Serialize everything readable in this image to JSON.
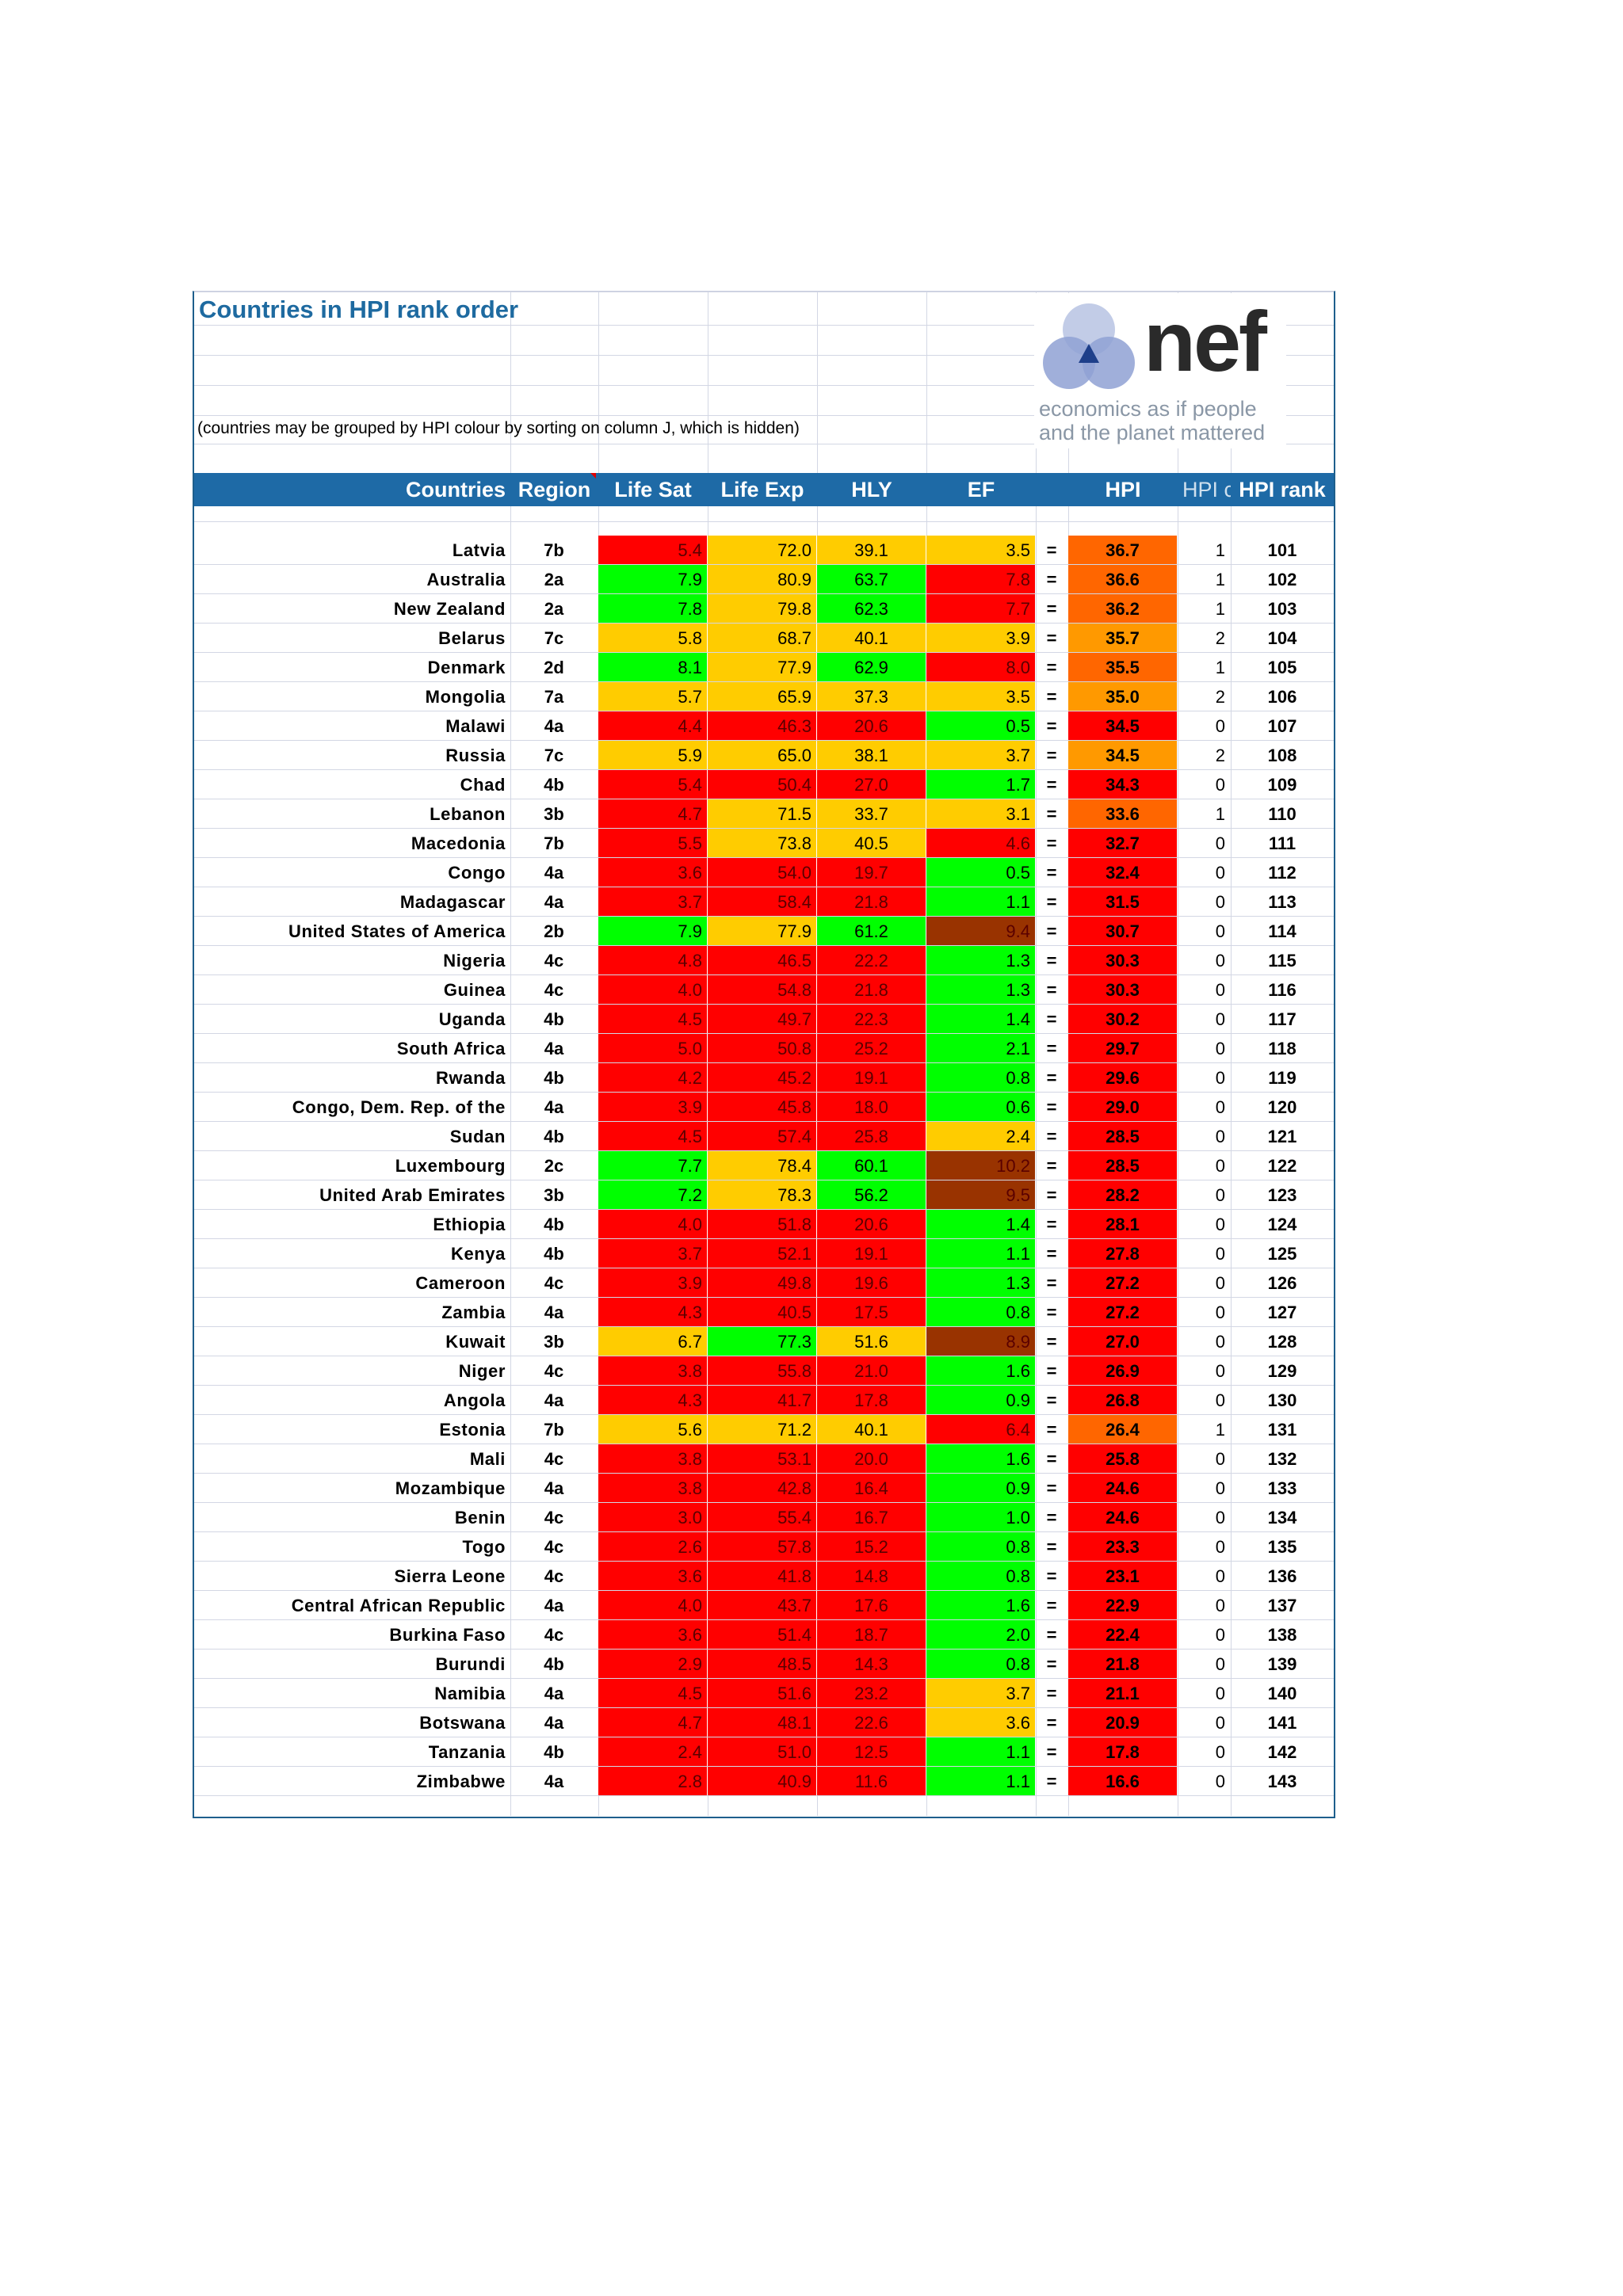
{
  "title": "Countries in HPI rank order",
  "note": "(countries may be grouped by HPI colour by sorting on column J, which is hidden)",
  "logo": {
    "word": "nef",
    "tagline_1": "economics as if people",
    "tagline_2": "and the planet mattered"
  },
  "columns": {
    "countries": "Countries",
    "region": "Region",
    "life_sat": "Life Sat",
    "life_exp": "Life Exp",
    "hly": "HLY",
    "ef": "EF",
    "hpi": "HPI",
    "hpi_colour": "HPI c",
    "hpi_rank": "HPI rank"
  },
  "colors": {
    "red": "#ff0000",
    "orange": "#ff6600",
    "amber": "#ff9900",
    "yellow": "#ffcc00",
    "green": "#00ff00",
    "brown": "#993300",
    "header": "#1e6aa6",
    "title": "#1e6aa0"
  },
  "rows": [
    {
      "country": "Latvia",
      "region": "7b",
      "ls": "5.4",
      "ls_c": "red",
      "le": "72.0",
      "le_c": "yellow",
      "hly": "39.1",
      "hly_c": "yellow",
      "ef": "3.5",
      "ef_c": "yellow",
      "hpi": "36.7",
      "hpi_c": "orange",
      "hc": "1",
      "rank": "101"
    },
    {
      "country": "Australia",
      "region": "2a",
      "ls": "7.9",
      "ls_c": "green",
      "le": "80.9",
      "le_c": "yellow",
      "hly": "63.7",
      "hly_c": "green",
      "ef": "7.8",
      "ef_c": "red",
      "hpi": "36.6",
      "hpi_c": "orange",
      "hc": "1",
      "rank": "102"
    },
    {
      "country": "New Zealand",
      "region": "2a",
      "ls": "7.8",
      "ls_c": "green",
      "le": "79.8",
      "le_c": "yellow",
      "hly": "62.3",
      "hly_c": "green",
      "ef": "7.7",
      "ef_c": "red",
      "hpi": "36.2",
      "hpi_c": "orange",
      "hc": "1",
      "rank": "103"
    },
    {
      "country": "Belarus",
      "region": "7c",
      "ls": "5.8",
      "ls_c": "yellow",
      "le": "68.7",
      "le_c": "yellow",
      "hly": "40.1",
      "hly_c": "yellow",
      "ef": "3.9",
      "ef_c": "yellow",
      "hpi": "35.7",
      "hpi_c": "amber",
      "hc": "2",
      "rank": "104"
    },
    {
      "country": "Denmark",
      "region": "2d",
      "ls": "8.1",
      "ls_c": "green",
      "le": "77.9",
      "le_c": "yellow",
      "hly": "62.9",
      "hly_c": "green",
      "ef": "8.0",
      "ef_c": "red",
      "hpi": "35.5",
      "hpi_c": "orange",
      "hc": "1",
      "rank": "105"
    },
    {
      "country": "Mongolia",
      "region": "7a",
      "ls": "5.7",
      "ls_c": "yellow",
      "le": "65.9",
      "le_c": "yellow",
      "hly": "37.3",
      "hly_c": "yellow",
      "ef": "3.5",
      "ef_c": "yellow",
      "hpi": "35.0",
      "hpi_c": "amber",
      "hc": "2",
      "rank": "106"
    },
    {
      "country": "Malawi",
      "region": "4a",
      "ls": "4.4",
      "ls_c": "red",
      "le": "46.3",
      "le_c": "red",
      "hly": "20.6",
      "hly_c": "red",
      "ef": "0.5",
      "ef_c": "green",
      "hpi": "34.5",
      "hpi_c": "red",
      "hc": "0",
      "rank": "107"
    },
    {
      "country": "Russia",
      "region": "7c",
      "ls": "5.9",
      "ls_c": "yellow",
      "le": "65.0",
      "le_c": "yellow",
      "hly": "38.1",
      "hly_c": "yellow",
      "ef": "3.7",
      "ef_c": "yellow",
      "hpi": "34.5",
      "hpi_c": "amber",
      "hc": "2",
      "rank": "108"
    },
    {
      "country": "Chad",
      "region": "4b",
      "ls": "5.4",
      "ls_c": "red",
      "le": "50.4",
      "le_c": "red",
      "hly": "27.0",
      "hly_c": "red",
      "ef": "1.7",
      "ef_c": "green",
      "hpi": "34.3",
      "hpi_c": "red",
      "hc": "0",
      "rank": "109"
    },
    {
      "country": "Lebanon",
      "region": "3b",
      "ls": "4.7",
      "ls_c": "red",
      "le": "71.5",
      "le_c": "yellow",
      "hly": "33.7",
      "hly_c": "yellow",
      "ef": "3.1",
      "ef_c": "yellow",
      "hpi": "33.6",
      "hpi_c": "orange",
      "hc": "1",
      "rank": "110"
    },
    {
      "country": "Macedonia",
      "region": "7b",
      "ls": "5.5",
      "ls_c": "red",
      "le": "73.8",
      "le_c": "yellow",
      "hly": "40.5",
      "hly_c": "yellow",
      "ef": "4.6",
      "ef_c": "red",
      "hpi": "32.7",
      "hpi_c": "red",
      "hc": "0",
      "rank": "111"
    },
    {
      "country": "Congo",
      "region": "4a",
      "ls": "3.6",
      "ls_c": "red",
      "le": "54.0",
      "le_c": "red",
      "hly": "19.7",
      "hly_c": "red",
      "ef": "0.5",
      "ef_c": "green",
      "hpi": "32.4",
      "hpi_c": "red",
      "hc": "0",
      "rank": "112"
    },
    {
      "country": "Madagascar",
      "region": "4a",
      "ls": "3.7",
      "ls_c": "red",
      "le": "58.4",
      "le_c": "red",
      "hly": "21.8",
      "hly_c": "red",
      "ef": "1.1",
      "ef_c": "green",
      "hpi": "31.5",
      "hpi_c": "red",
      "hc": "0",
      "rank": "113"
    },
    {
      "country": "United States of America",
      "region": "2b",
      "ls": "7.9",
      "ls_c": "green",
      "le": "77.9",
      "le_c": "yellow",
      "hly": "61.2",
      "hly_c": "green",
      "ef": "9.4",
      "ef_c": "brown",
      "hpi": "30.7",
      "hpi_c": "red",
      "hc": "0",
      "rank": "114"
    },
    {
      "country": "Nigeria",
      "region": "4c",
      "ls": "4.8",
      "ls_c": "red",
      "le": "46.5",
      "le_c": "red",
      "hly": "22.2",
      "hly_c": "red",
      "ef": "1.3",
      "ef_c": "green",
      "hpi": "30.3",
      "hpi_c": "red",
      "hc": "0",
      "rank": "115"
    },
    {
      "country": "Guinea",
      "region": "4c",
      "ls": "4.0",
      "ls_c": "red",
      "le": "54.8",
      "le_c": "red",
      "hly": "21.8",
      "hly_c": "red",
      "ef": "1.3",
      "ef_c": "green",
      "hpi": "30.3",
      "hpi_c": "red",
      "hc": "0",
      "rank": "116"
    },
    {
      "country": "Uganda",
      "region": "4b",
      "ls": "4.5",
      "ls_c": "red",
      "le": "49.7",
      "le_c": "red",
      "hly": "22.3",
      "hly_c": "red",
      "ef": "1.4",
      "ef_c": "green",
      "hpi": "30.2",
      "hpi_c": "red",
      "hc": "0",
      "rank": "117"
    },
    {
      "country": "South Africa",
      "region": "4a",
      "ls": "5.0",
      "ls_c": "red",
      "le": "50.8",
      "le_c": "red",
      "hly": "25.2",
      "hly_c": "red",
      "ef": "2.1",
      "ef_c": "green",
      "hpi": "29.7",
      "hpi_c": "red",
      "hc": "0",
      "rank": "118"
    },
    {
      "country": "Rwanda",
      "region": "4b",
      "ls": "4.2",
      "ls_c": "red",
      "le": "45.2",
      "le_c": "red",
      "hly": "19.1",
      "hly_c": "red",
      "ef": "0.8",
      "ef_c": "green",
      "hpi": "29.6",
      "hpi_c": "red",
      "hc": "0",
      "rank": "119"
    },
    {
      "country": "Congo, Dem. Rep. of the",
      "region": "4a",
      "ls": "3.9",
      "ls_c": "red",
      "le": "45.8",
      "le_c": "red",
      "hly": "18.0",
      "hly_c": "red",
      "ef": "0.6",
      "ef_c": "green",
      "hpi": "29.0",
      "hpi_c": "red",
      "hc": "0",
      "rank": "120"
    },
    {
      "country": "Sudan",
      "region": "4b",
      "ls": "4.5",
      "ls_c": "red",
      "le": "57.4",
      "le_c": "red",
      "hly": "25.8",
      "hly_c": "red",
      "ef": "2.4",
      "ef_c": "yellow",
      "hpi": "28.5",
      "hpi_c": "red",
      "hc": "0",
      "rank": "121"
    },
    {
      "country": "Luxembourg",
      "region": "2c",
      "ls": "7.7",
      "ls_c": "green",
      "le": "78.4",
      "le_c": "yellow",
      "hly": "60.1",
      "hly_c": "green",
      "ef": "10.2",
      "ef_c": "brown",
      "hpi": "28.5",
      "hpi_c": "red",
      "hc": "0",
      "rank": "122"
    },
    {
      "country": "United Arab Emirates",
      "region": "3b",
      "ls": "7.2",
      "ls_c": "green",
      "le": "78.3",
      "le_c": "yellow",
      "hly": "56.2",
      "hly_c": "green",
      "ef": "9.5",
      "ef_c": "brown",
      "hpi": "28.2",
      "hpi_c": "red",
      "hc": "0",
      "rank": "123"
    },
    {
      "country": "Ethiopia",
      "region": "4b",
      "ls": "4.0",
      "ls_c": "red",
      "le": "51.8",
      "le_c": "red",
      "hly": "20.6",
      "hly_c": "red",
      "ef": "1.4",
      "ef_c": "green",
      "hpi": "28.1",
      "hpi_c": "red",
      "hc": "0",
      "rank": "124"
    },
    {
      "country": "Kenya",
      "region": "4b",
      "ls": "3.7",
      "ls_c": "red",
      "le": "52.1",
      "le_c": "red",
      "hly": "19.1",
      "hly_c": "red",
      "ef": "1.1",
      "ef_c": "green",
      "hpi": "27.8",
      "hpi_c": "red",
      "hc": "0",
      "rank": "125"
    },
    {
      "country": "Cameroon",
      "region": "4c",
      "ls": "3.9",
      "ls_c": "red",
      "le": "49.8",
      "le_c": "red",
      "hly": "19.6",
      "hly_c": "red",
      "ef": "1.3",
      "ef_c": "green",
      "hpi": "27.2",
      "hpi_c": "red",
      "hc": "0",
      "rank": "126"
    },
    {
      "country": "Zambia",
      "region": "4a",
      "ls": "4.3",
      "ls_c": "red",
      "le": "40.5",
      "le_c": "red",
      "hly": "17.5",
      "hly_c": "red",
      "ef": "0.8",
      "ef_c": "green",
      "hpi": "27.2",
      "hpi_c": "red",
      "hc": "0",
      "rank": "127"
    },
    {
      "country": "Kuwait",
      "region": "3b",
      "ls": "6.7",
      "ls_c": "yellow",
      "le": "77.3",
      "le_c": "green",
      "hly": "51.6",
      "hly_c": "yellow",
      "ef": "8.9",
      "ef_c": "brown",
      "hpi": "27.0",
      "hpi_c": "red",
      "hc": "0",
      "rank": "128"
    },
    {
      "country": "Niger",
      "region": "4c",
      "ls": "3.8",
      "ls_c": "red",
      "le": "55.8",
      "le_c": "red",
      "hly": "21.0",
      "hly_c": "red",
      "ef": "1.6",
      "ef_c": "green",
      "hpi": "26.9",
      "hpi_c": "red",
      "hc": "0",
      "rank": "129"
    },
    {
      "country": "Angola",
      "region": "4a",
      "ls": "4.3",
      "ls_c": "red",
      "le": "41.7",
      "le_c": "red",
      "hly": "17.8",
      "hly_c": "red",
      "ef": "0.9",
      "ef_c": "green",
      "hpi": "26.8",
      "hpi_c": "red",
      "hc": "0",
      "rank": "130"
    },
    {
      "country": "Estonia",
      "region": "7b",
      "ls": "5.6",
      "ls_c": "yellow",
      "le": "71.2",
      "le_c": "yellow",
      "hly": "40.1",
      "hly_c": "yellow",
      "ef": "6.4",
      "ef_c": "red",
      "hpi": "26.4",
      "hpi_c": "orange",
      "hc": "1",
      "rank": "131"
    },
    {
      "country": "Mali",
      "region": "4c",
      "ls": "3.8",
      "ls_c": "red",
      "le": "53.1",
      "le_c": "red",
      "hly": "20.0",
      "hly_c": "red",
      "ef": "1.6",
      "ef_c": "green",
      "hpi": "25.8",
      "hpi_c": "red",
      "hc": "0",
      "rank": "132"
    },
    {
      "country": "Mozambique",
      "region": "4a",
      "ls": "3.8",
      "ls_c": "red",
      "le": "42.8",
      "le_c": "red",
      "hly": "16.4",
      "hly_c": "red",
      "ef": "0.9",
      "ef_c": "green",
      "hpi": "24.6",
      "hpi_c": "red",
      "hc": "0",
      "rank": "133"
    },
    {
      "country": "Benin",
      "region": "4c",
      "ls": "3.0",
      "ls_c": "red",
      "le": "55.4",
      "le_c": "red",
      "hly": "16.7",
      "hly_c": "red",
      "ef": "1.0",
      "ef_c": "green",
      "hpi": "24.6",
      "hpi_c": "red",
      "hc": "0",
      "rank": "134"
    },
    {
      "country": "Togo",
      "region": "4c",
      "ls": "2.6",
      "ls_c": "red",
      "le": "57.8",
      "le_c": "red",
      "hly": "15.2",
      "hly_c": "red",
      "ef": "0.8",
      "ef_c": "green",
      "hpi": "23.3",
      "hpi_c": "red",
      "hc": "0",
      "rank": "135"
    },
    {
      "country": "Sierra Leone",
      "region": "4c",
      "ls": "3.6",
      "ls_c": "red",
      "le": "41.8",
      "le_c": "red",
      "hly": "14.8",
      "hly_c": "red",
      "ef": "0.8",
      "ef_c": "green",
      "hpi": "23.1",
      "hpi_c": "red",
      "hc": "0",
      "rank": "136"
    },
    {
      "country": "Central African Republic",
      "region": "4a",
      "ls": "4.0",
      "ls_c": "red",
      "le": "43.7",
      "le_c": "red",
      "hly": "17.6",
      "hly_c": "red",
      "ef": "1.6",
      "ef_c": "green",
      "hpi": "22.9",
      "hpi_c": "red",
      "hc": "0",
      "rank": "137"
    },
    {
      "country": "Burkina Faso",
      "region": "4c",
      "ls": "3.6",
      "ls_c": "red",
      "le": "51.4",
      "le_c": "red",
      "hly": "18.7",
      "hly_c": "red",
      "ef": "2.0",
      "ef_c": "green",
      "hpi": "22.4",
      "hpi_c": "red",
      "hc": "0",
      "rank": "138"
    },
    {
      "country": "Burundi",
      "region": "4b",
      "ls": "2.9",
      "ls_c": "red",
      "le": "48.5",
      "le_c": "red",
      "hly": "14.3",
      "hly_c": "red",
      "ef": "0.8",
      "ef_c": "green",
      "hpi": "21.8",
      "hpi_c": "red",
      "hc": "0",
      "rank": "139"
    },
    {
      "country": "Namibia",
      "region": "4a",
      "ls": "4.5",
      "ls_c": "red",
      "le": "51.6",
      "le_c": "red",
      "hly": "23.2",
      "hly_c": "red",
      "ef": "3.7",
      "ef_c": "yellow",
      "hpi": "21.1",
      "hpi_c": "red",
      "hc": "0",
      "rank": "140"
    },
    {
      "country": "Botswana",
      "region": "4a",
      "ls": "4.7",
      "ls_c": "red",
      "le": "48.1",
      "le_c": "red",
      "hly": "22.6",
      "hly_c": "red",
      "ef": "3.6",
      "ef_c": "yellow",
      "hpi": "20.9",
      "hpi_c": "red",
      "hc": "0",
      "rank": "141"
    },
    {
      "country": "Tanzania",
      "region": "4b",
      "ls": "2.4",
      "ls_c": "red",
      "le": "51.0",
      "le_c": "red",
      "hly": "12.5",
      "hly_c": "red",
      "ef": "1.1",
      "ef_c": "green",
      "hpi": "17.8",
      "hpi_c": "red",
      "hc": "0",
      "rank": "142"
    },
    {
      "country": "Zimbabwe",
      "region": "4a",
      "ls": "2.8",
      "ls_c": "red",
      "le": "40.9",
      "le_c": "red",
      "hly": "11.6",
      "hly_c": "red",
      "ef": "1.1",
      "ef_c": "green",
      "hpi": "16.6",
      "hpi_c": "red",
      "hc": "0",
      "rank": "143"
    }
  ]
}
